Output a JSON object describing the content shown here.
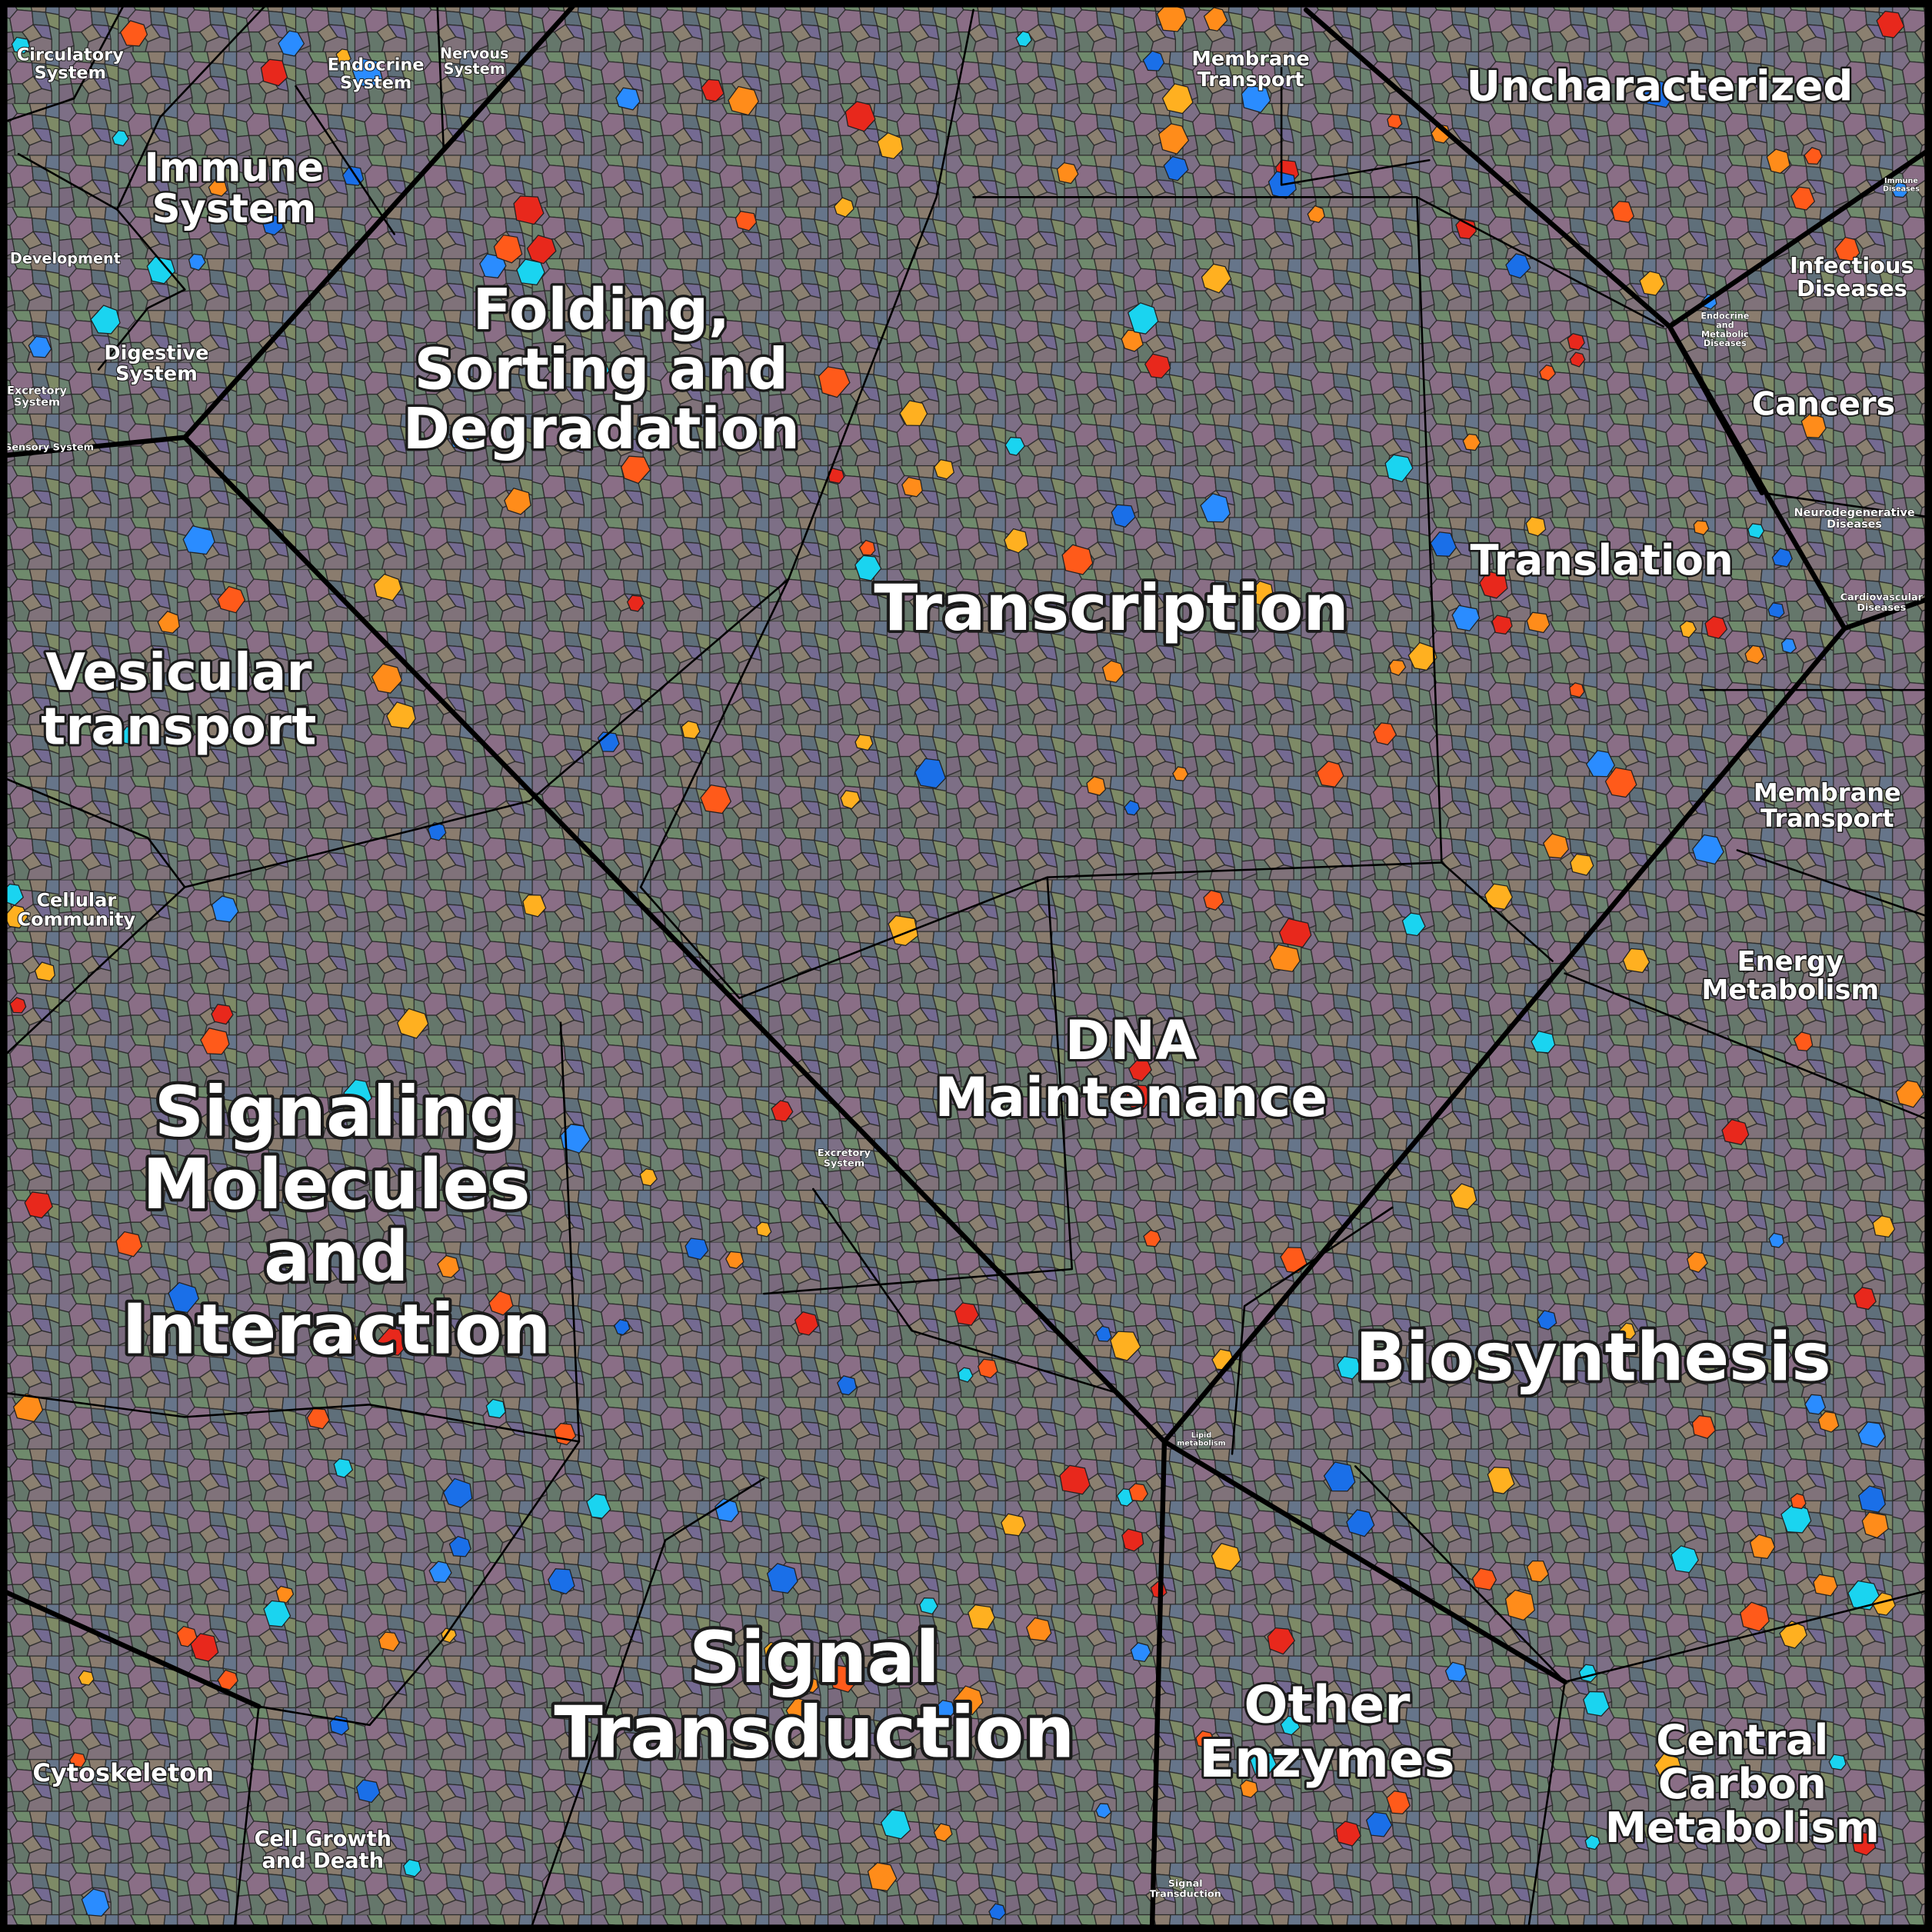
{
  "regions": [
    {
      "lines": [
        "Circulatory",
        "System"
      ]
    },
    {
      "lines": [
        "Endocrine",
        "System"
      ]
    },
    {
      "lines": [
        "Nervous",
        "System"
      ]
    },
    {
      "lines": [
        "Immune",
        "System"
      ]
    },
    {
      "lines": [
        "Development"
      ]
    },
    {
      "lines": [
        "Digestive",
        "System"
      ]
    },
    {
      "lines": [
        "Excretory",
        "System"
      ]
    },
    {
      "lines": [
        "Sensory System"
      ]
    },
    {
      "lines": [
        "Folding,",
        "Sorting and",
        "Degradation"
      ]
    },
    {
      "lines": [
        "Membrane",
        "Transport"
      ]
    },
    {
      "lines": [
        "Uncharacterized"
      ]
    },
    {
      "lines": [
        "Immune",
        "Diseases"
      ]
    },
    {
      "lines": [
        "Infectious",
        "Diseases"
      ]
    },
    {
      "lines": [
        "Endocrine",
        "and",
        "Metabolic",
        "Diseases"
      ]
    },
    {
      "lines": [
        "Cancers"
      ]
    },
    {
      "lines": [
        "Neurodegenerative",
        "Diseases"
      ]
    },
    {
      "lines": [
        "Cardiovascular",
        "Diseases"
      ]
    },
    {
      "lines": [
        "Translation"
      ]
    },
    {
      "lines": [
        "Transcription"
      ]
    },
    {
      "lines": [
        "Vesicular",
        "transport"
      ]
    },
    {
      "lines": [
        "Membrane",
        "Transport"
      ]
    },
    {
      "lines": [
        "Cellular",
        "Community"
      ]
    },
    {
      "lines": [
        "Energy",
        "Metabolism"
      ]
    },
    {
      "lines": [
        "DNA",
        "Maintenance"
      ]
    },
    {
      "lines": [
        "Excretory",
        "System"
      ]
    },
    {
      "lines": [
        "Signaling",
        "Molecules",
        "and",
        "Interaction"
      ]
    },
    {
      "lines": [
        "Biosynthesis"
      ]
    },
    {
      "lines": [
        "Lipid",
        "metabolism"
      ]
    },
    {
      "lines": [
        "Signal",
        "Transduction"
      ]
    },
    {
      "lines": [
        "Other",
        "Enzymes"
      ]
    },
    {
      "lines": [
        "Central",
        "Carbon",
        "Metabolism"
      ]
    },
    {
      "lines": [
        "Cytoskeleton"
      ]
    },
    {
      "lines": [
        "Cell Growth",
        "and Death"
      ]
    },
    {
      "lines": [
        "Signal",
        "Transduction"
      ]
    }
  ]
}
